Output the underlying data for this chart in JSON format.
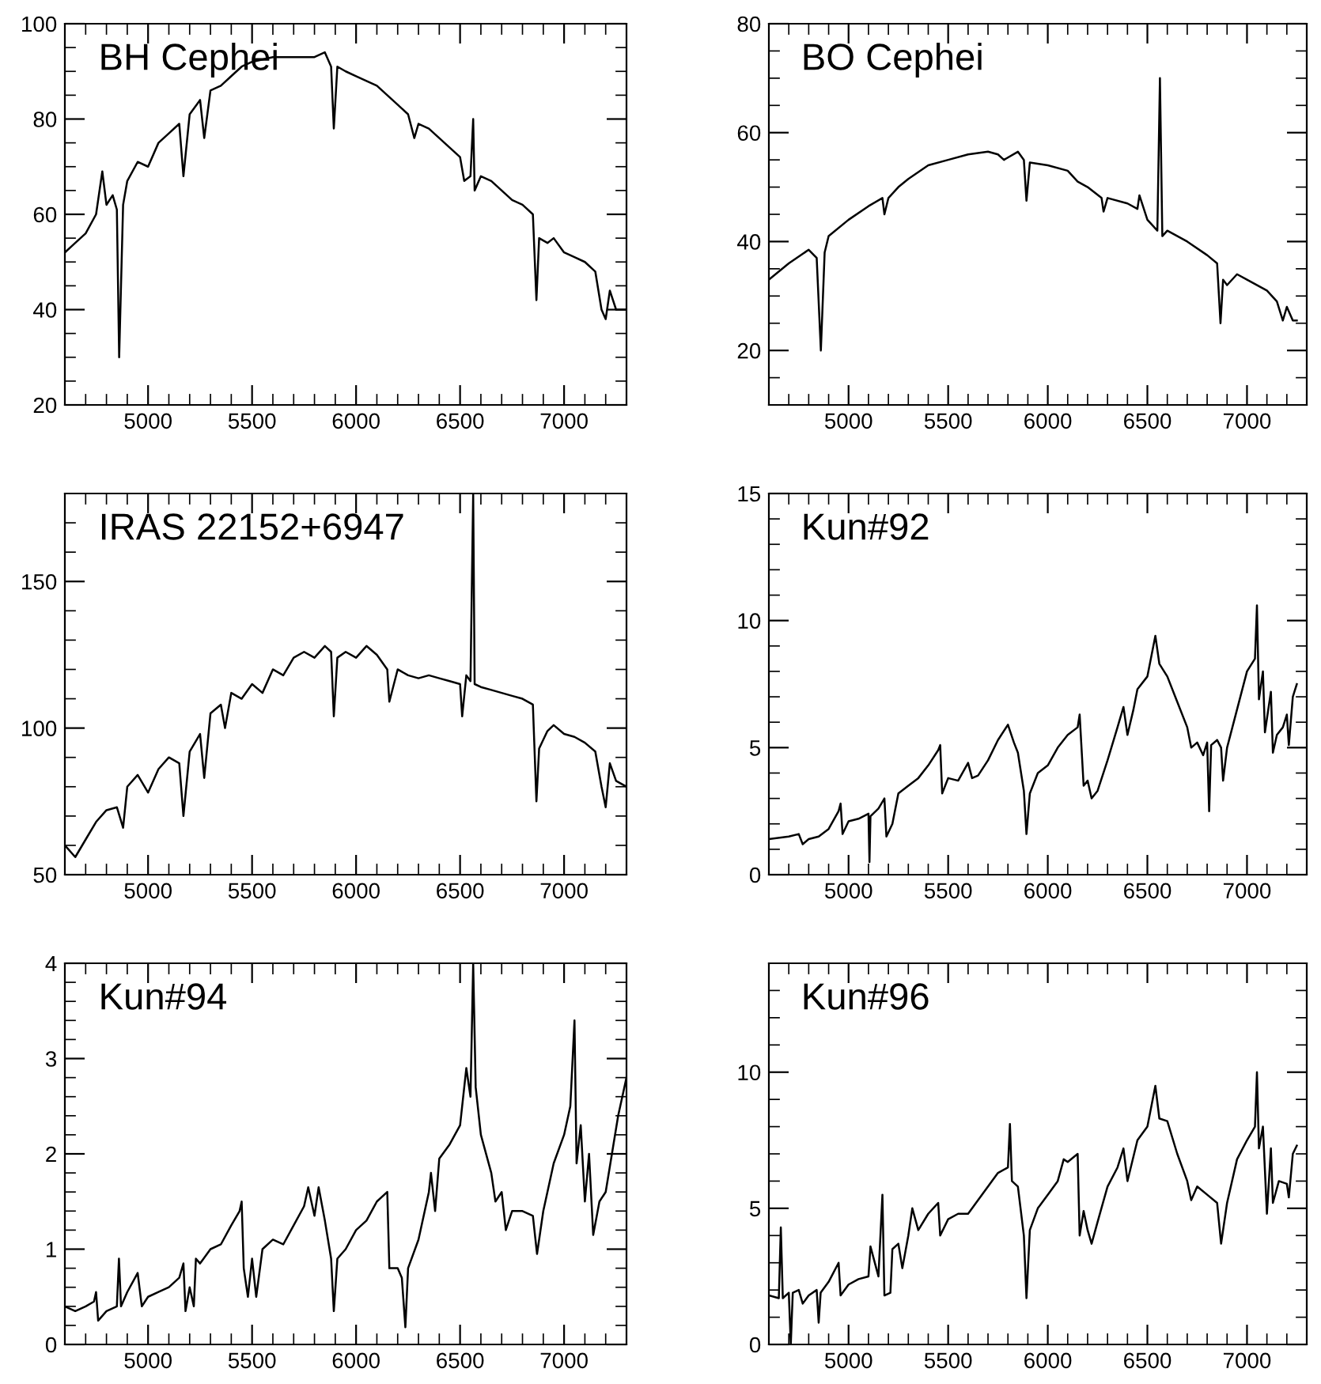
{
  "chart_data": [
    {
      "type": "line",
      "title": "BH Cephei",
      "xlim": [
        4600,
        7300
      ],
      "xticks": [
        5000,
        5500,
        6000,
        6500,
        7000
      ],
      "ylim": [
        20,
        100
      ],
      "yticks": [
        20,
        40,
        60,
        80,
        100
      ],
      "x": [
        4600,
        4650,
        4700,
        4750,
        4780,
        4800,
        4830,
        4850,
        4861,
        4880,
        4900,
        4950,
        5000,
        5050,
        5100,
        5150,
        5170,
        5200,
        5250,
        5270,
        5300,
        5350,
        5400,
        5450,
        5500,
        5600,
        5700,
        5800,
        5850,
        5880,
        5893,
        5910,
        5950,
        6000,
        6050,
        6100,
        6150,
        6200,
        6250,
        6280,
        6300,
        6350,
        6400,
        6450,
        6500,
        6520,
        6550,
        6563,
        6570,
        6600,
        6650,
        6700,
        6750,
        6800,
        6850,
        6867,
        6880,
        6920,
        6950,
        7000,
        7050,
        7100,
        7150,
        7180,
        7200,
        7220,
        7250,
        7300
      ],
      "series": [
        {
          "color": "#000000",
          "values": [
            52,
            54,
            56,
            60,
            69,
            62,
            64,
            61,
            30,
            62,
            67,
            71,
            70,
            75,
            77,
            79,
            68,
            81,
            84,
            76,
            86,
            87,
            89,
            91,
            92,
            93,
            93,
            93,
            94,
            91,
            78,
            91,
            90,
            89,
            88,
            87,
            85,
            83,
            81,
            76,
            79,
            78,
            76,
            74,
            72,
            67,
            68,
            80,
            65,
            68,
            67,
            65,
            63,
            62,
            60,
            42,
            55,
            54,
            55,
            52,
            51,
            50,
            48,
            40,
            38,
            44,
            40,
            40
          ]
        }
      ]
    },
    {
      "type": "line",
      "title": "BO Cephei",
      "xlim": [
        4600,
        7300
      ],
      "xticks": [
        5000,
        5500,
        6000,
        6500,
        7000
      ],
      "ylim": [
        10,
        80
      ],
      "yticks": [
        20,
        40,
        60,
        80
      ],
      "x": [
        4600,
        4700,
        4800,
        4840,
        4861,
        4880,
        4900,
        5000,
        5100,
        5170,
        5180,
        5200,
        5250,
        5300,
        5400,
        5500,
        5600,
        5700,
        5750,
        5780,
        5850,
        5880,
        5893,
        5910,
        6000,
        6100,
        6150,
        6200,
        6270,
        6280,
        6300,
        6400,
        6450,
        6460,
        6500,
        6550,
        6563,
        6575,
        6600,
        6700,
        6800,
        6850,
        6867,
        6880,
        6900,
        6950,
        7000,
        7100,
        7150,
        7180,
        7200,
        7230,
        7250
      ],
      "series": [
        {
          "color": "#000000",
          "values": [
            33,
            36,
            38.5,
            37,
            20,
            38,
            41,
            44,
            46.5,
            48,
            45,
            48,
            50,
            51.5,
            54,
            55,
            56,
            56.5,
            56,
            55,
            56.5,
            55,
            47.5,
            54.5,
            54,
            53,
            51,
            50,
            48,
            45.5,
            48,
            47,
            46,
            48.5,
            44,
            42,
            70,
            41,
            42,
            40,
            37.5,
            36,
            25,
            33,
            32,
            34,
            33,
            31,
            29,
            25.5,
            28,
            25.5,
            25.5
          ]
        }
      ]
    },
    {
      "type": "line",
      "title": "IRAS 22152+6947",
      "xlim": [
        4600,
        7300
      ],
      "xticks": [
        5000,
        5500,
        6000,
        6500,
        7000
      ],
      "ylim": [
        50,
        180
      ],
      "yticks": [
        50,
        100,
        150
      ],
      "x": [
        4600,
        4650,
        4700,
        4750,
        4800,
        4850,
        4880,
        4900,
        4950,
        5000,
        5050,
        5100,
        5150,
        5170,
        5200,
        5250,
        5270,
        5300,
        5350,
        5370,
        5400,
        5450,
        5500,
        5550,
        5600,
        5650,
        5700,
        5750,
        5800,
        5850,
        5880,
        5893,
        5910,
        5950,
        6000,
        6050,
        6100,
        6150,
        6160,
        6200,
        6250,
        6300,
        6350,
        6400,
        6450,
        6500,
        6510,
        6530,
        6550,
        6563,
        6570,
        6600,
        6650,
        6700,
        6750,
        6800,
        6850,
        6867,
        6880,
        6920,
        6950,
        7000,
        7050,
        7100,
        7150,
        7180,
        7200,
        7220,
        7250,
        7300
      ],
      "series": [
        {
          "color": "#000000",
          "values": [
            60,
            56,
            62,
            68,
            72,
            73,
            66,
            80,
            84,
            78,
            86,
            90,
            88,
            70,
            92,
            98,
            83,
            105,
            108,
            100,
            112,
            110,
            115,
            112,
            120,
            118,
            124,
            126,
            124,
            128,
            126,
            104,
            124,
            126,
            124,
            128,
            125,
            120,
            109,
            120,
            118,
            117,
            118,
            117,
            116,
            115,
            104,
            118,
            116,
            180,
            115,
            114,
            113,
            112,
            111,
            110,
            108,
            75,
            93,
            99,
            101,
            98,
            97,
            95,
            92,
            80,
            73,
            88,
            82,
            80
          ]
        }
      ]
    },
    {
      "type": "line",
      "title": "Kun#92",
      "xlim": [
        4600,
        7300
      ],
      "xticks": [
        5000,
        5500,
        6000,
        6500,
        7000
      ],
      "ylim": [
        0,
        15
      ],
      "yticks": [
        0,
        5,
        10,
        15
      ],
      "x": [
        4600,
        4700,
        4750,
        4770,
        4800,
        4850,
        4900,
        4950,
        4960,
        4970,
        5000,
        5050,
        5100,
        5105,
        5110,
        5150,
        5180,
        5190,
        5220,
        5250,
        5300,
        5350,
        5400,
        5450,
        5460,
        5470,
        5500,
        5550,
        5600,
        5620,
        5650,
        5700,
        5750,
        5800,
        5830,
        5850,
        5880,
        5893,
        5910,
        5950,
        6000,
        6050,
        6100,
        6150,
        6160,
        6180,
        6200,
        6220,
        6250,
        6300,
        6350,
        6380,
        6400,
        6430,
        6450,
        6500,
        6540,
        6560,
        6600,
        6650,
        6700,
        6720,
        6750,
        6780,
        6800,
        6810,
        6820,
        6850,
        6870,
        6880,
        6900,
        6950,
        7000,
        7040,
        7050,
        7060,
        7080,
        7090,
        7120,
        7130,
        7150,
        7180,
        7200,
        7210,
        7230,
        7250
      ],
      "series": [
        {
          "color": "#000000",
          "values": [
            1.4,
            1.5,
            1.6,
            1.2,
            1.4,
            1.5,
            1.8,
            2.5,
            2.8,
            1.6,
            2.1,
            2.2,
            2.4,
            0.5,
            2.3,
            2.6,
            3.0,
            1.5,
            2.0,
            3.2,
            3.5,
            3.8,
            4.3,
            4.9,
            5.1,
            3.2,
            3.8,
            3.7,
            4.4,
            3.8,
            3.9,
            4.5,
            5.3,
            5.9,
            5.2,
            4.8,
            3.3,
            1.6,
            3.2,
            4.0,
            4.3,
            5.0,
            5.5,
            5.8,
            6.3,
            3.5,
            3.7,
            3.0,
            3.3,
            4.5,
            5.8,
            6.6,
            5.5,
            6.5,
            7.3,
            7.8,
            9.4,
            8.3,
            7.8,
            6.8,
            5.8,
            5.0,
            5.2,
            4.7,
            5.2,
            2.5,
            5.1,
            5.3,
            5.0,
            3.7,
            5.0,
            6.5,
            8.0,
            8.5,
            10.6,
            6.9,
            8.0,
            5.6,
            7.2,
            4.8,
            5.5,
            5.8,
            6.3,
            5.1,
            7.0,
            7.5
          ]
        }
      ]
    },
    {
      "type": "line",
      "title": "Kun#94",
      "xlim": [
        4600,
        7300
      ],
      "xticks": [
        5000,
        5500,
        6000,
        6500,
        7000
      ],
      "ylim": [
        0,
        4
      ],
      "yticks": [
        0,
        1,
        2,
        3,
        4
      ],
      "x": [
        4600,
        4650,
        4700,
        4740,
        4750,
        4760,
        4800,
        4850,
        4860,
        4870,
        4900,
        4950,
        4970,
        5000,
        5050,
        5100,
        5150,
        5170,
        5180,
        5200,
        5220,
        5230,
        5250,
        5300,
        5350,
        5400,
        5440,
        5450,
        5460,
        5480,
        5500,
        5520,
        5550,
        5600,
        5650,
        5700,
        5750,
        5770,
        5800,
        5820,
        5850,
        5880,
        5893,
        5910,
        5950,
        6000,
        6050,
        6100,
        6150,
        6160,
        6200,
        6220,
        6237,
        6250,
        6300,
        6350,
        6360,
        6380,
        6400,
        6450,
        6500,
        6530,
        6550,
        6563,
        6575,
        6600,
        6650,
        6670,
        6700,
        6720,
        6750,
        6800,
        6850,
        6870,
        6900,
        6950,
        7000,
        7030,
        7050,
        7060,
        7080,
        7100,
        7120,
        7140,
        7170,
        7200,
        7230,
        7260,
        7300
      ],
      "series": [
        {
          "color": "#000000",
          "values": [
            0.4,
            0.35,
            0.4,
            0.45,
            0.55,
            0.25,
            0.35,
            0.4,
            0.9,
            0.4,
            0.55,
            0.75,
            0.4,
            0.5,
            0.55,
            0.6,
            0.7,
            0.85,
            0.35,
            0.6,
            0.4,
            0.9,
            0.85,
            1.0,
            1.05,
            1.25,
            1.4,
            1.5,
            0.8,
            0.5,
            0.9,
            0.5,
            1.0,
            1.1,
            1.05,
            1.25,
            1.45,
            1.65,
            1.35,
            1.65,
            1.3,
            0.9,
            0.35,
            0.9,
            1.0,
            1.2,
            1.3,
            1.5,
            1.6,
            0.8,
            0.8,
            0.7,
            0.18,
            0.8,
            1.1,
            1.6,
            1.8,
            1.4,
            1.95,
            2.1,
            2.3,
            2.9,
            2.6,
            4.0,
            2.7,
            2.2,
            1.8,
            1.5,
            1.6,
            1.2,
            1.4,
            1.4,
            1.35,
            0.95,
            1.4,
            1.9,
            2.2,
            2.5,
            3.4,
            1.9,
            2.3,
            1.5,
            2.0,
            1.15,
            1.5,
            1.6,
            2.0,
            2.4,
            2.8
          ]
        }
      ]
    },
    {
      "type": "line",
      "title": "Kun#96",
      "xlim": [
        4600,
        7300
      ],
      "xticks": [
        5000,
        5500,
        6000,
        6500,
        7000
      ],
      "ylim": [
        0,
        14
      ],
      "yticks": [
        0,
        5,
        10
      ],
      "x": [
        4600,
        4650,
        4660,
        4670,
        4700,
        4710,
        4720,
        4750,
        4770,
        4800,
        4840,
        4850,
        4860,
        4900,
        4950,
        4960,
        5000,
        5050,
        5100,
        5110,
        5150,
        5170,
        5180,
        5210,
        5220,
        5250,
        5270,
        5300,
        5320,
        5350,
        5400,
        5450,
        5460,
        5500,
        5550,
        5600,
        5650,
        5700,
        5750,
        5800,
        5810,
        5820,
        5850,
        5880,
        5893,
        5910,
        5950,
        6000,
        6050,
        6080,
        6100,
        6150,
        6160,
        6180,
        6200,
        6220,
        6250,
        6300,
        6350,
        6380,
        6400,
        6450,
        6500,
        6540,
        6560,
        6600,
        6650,
        6700,
        6720,
        6750,
        6800,
        6850,
        6870,
        6900,
        6950,
        7000,
        7040,
        7050,
        7060,
        7080,
        7100,
        7120,
        7130,
        7160,
        7200,
        7210,
        7230,
        7250
      ],
      "series": [
        {
          "color": "#000000",
          "values": [
            1.8,
            1.7,
            4.3,
            1.7,
            1.9,
            0.0,
            1.9,
            2.0,
            1.5,
            1.8,
            2.0,
            0.8,
            1.9,
            2.3,
            3.0,
            1.8,
            2.2,
            2.4,
            2.5,
            3.6,
            2.5,
            5.5,
            1.8,
            1.9,
            3.5,
            3.7,
            2.8,
            4.0,
            5.0,
            4.2,
            4.8,
            5.2,
            4.0,
            4.6,
            4.8,
            4.8,
            5.3,
            5.8,
            6.3,
            6.5,
            8.1,
            6.0,
            5.8,
            4.0,
            1.7,
            4.2,
            5.0,
            5.5,
            6.0,
            6.8,
            6.7,
            7.0,
            4.0,
            4.9,
            4.2,
            3.7,
            4.5,
            5.8,
            6.5,
            7.2,
            6.0,
            7.5,
            8.0,
            9.5,
            8.3,
            8.2,
            7.0,
            6.0,
            5.3,
            5.8,
            5.5,
            5.2,
            3.7,
            5.2,
            6.8,
            7.5,
            8.0,
            10.0,
            7.2,
            8.0,
            4.8,
            7.2,
            5.2,
            6.0,
            5.9,
            5.4,
            7.0,
            7.3
          ]
        }
      ]
    }
  ]
}
